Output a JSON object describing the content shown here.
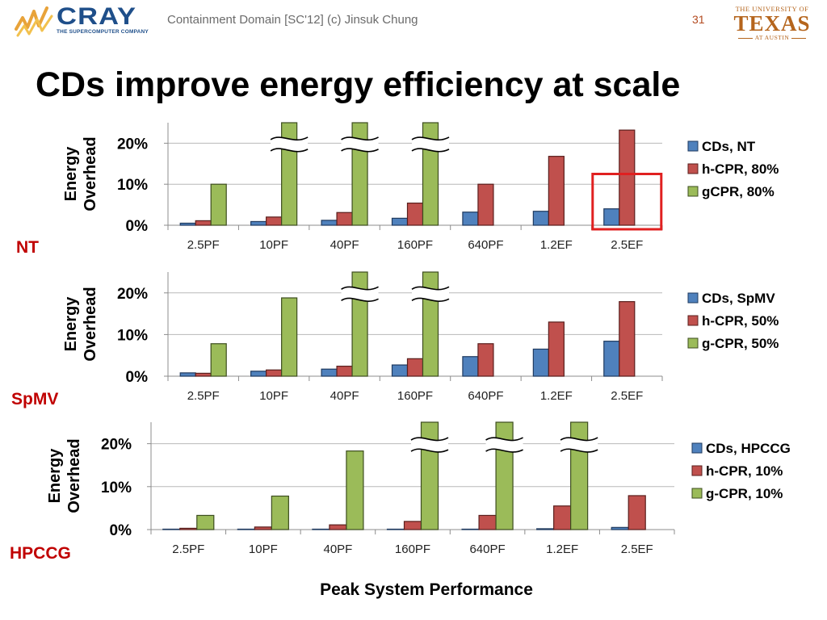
{
  "header": {
    "cray_logo_text": "CRAY",
    "cray_tagline": "THE SUPERCOMPUTER COMPANY",
    "caption": "Containment Domain [SC'12] (c) Jinsuk Chung",
    "slide_number": "31",
    "ut_line1": "THE UNIVERSITY OF",
    "ut_line2": "TEXAS",
    "ut_line3": "AT AUSTIN"
  },
  "title": "CDs improve energy efficiency at scale",
  "colors": {
    "series": [
      "#4f81bd",
      "#c0504d",
      "#9bbb59"
    ],
    "series_stroke": [
      "#1f3a5f",
      "#5a1f1d",
      "#3d4d1f"
    ],
    "panel_tag": "#c00000",
    "highlight_box": "#e02020"
  },
  "chart_data": [
    {
      "type": "bar",
      "panel_label": "NT",
      "ylabel_lines": [
        "Energy",
        "Overhead"
      ],
      "categories": [
        "2.5PF",
        "10PF",
        "40PF",
        "160PF",
        "640PF",
        "1.2EF",
        "2.5EF"
      ],
      "ylim": [
        0,
        0.25
      ],
      "yticks": [
        0,
        0.1,
        0.2
      ],
      "ytick_labels": [
        "0%",
        "10%",
        "20%"
      ],
      "grid": true,
      "legend_position": "right",
      "series": [
        {
          "name": "CDs, NT",
          "values": [
            0.005,
            0.009,
            0.012,
            0.017,
            0.032,
            0.034,
            0.04
          ]
        },
        {
          "name": "h-CPR, 80%",
          "values": [
            0.011,
            0.02,
            0.031,
            0.054,
            0.1,
            0.168,
            0.232
          ]
        },
        {
          "name": "gCPR, 80%",
          "values": [
            0.1,
            0.25,
            0.25,
            0.25,
            null,
            null,
            null
          ]
        }
      ],
      "broken_bars": [
        {
          "series": 2,
          "category": 1
        },
        {
          "series": 2,
          "category": 2
        },
        {
          "series": 2,
          "category": 3
        }
      ],
      "highlight_category": 6
    },
    {
      "type": "bar",
      "panel_label": "SpMV",
      "ylabel_lines": [
        "Energy",
        "Overhead"
      ],
      "categories": [
        "2.5PF",
        "10PF",
        "40PF",
        "160PF",
        "640PF",
        "1.2EF",
        "2.5EF"
      ],
      "ylim": [
        0,
        0.25
      ],
      "yticks": [
        0,
        0.1,
        0.2
      ],
      "ytick_labels": [
        "0%",
        "10%",
        "20%"
      ],
      "grid": true,
      "legend_position": "right",
      "series": [
        {
          "name": "CDs, SpMV",
          "values": [
            0.008,
            0.012,
            0.017,
            0.027,
            0.047,
            0.065,
            0.084
          ]
        },
        {
          "name": "h-CPR, 50%",
          "values": [
            0.007,
            0.015,
            0.024,
            0.042,
            0.078,
            0.13,
            0.179
          ]
        },
        {
          "name": "g-CPR, 50%",
          "values": [
            0.078,
            0.188,
            0.25,
            0.25,
            null,
            null,
            null
          ]
        }
      ],
      "broken_bars": [
        {
          "series": 2,
          "category": 2
        },
        {
          "series": 2,
          "category": 3
        }
      ]
    },
    {
      "type": "bar",
      "panel_label": "HPCCG",
      "ylabel_lines": [
        "Energy",
        "Overhead"
      ],
      "categories": [
        "2.5PF",
        "10PF",
        "40PF",
        "160PF",
        "640PF",
        "1.2EF",
        "2.5EF"
      ],
      "ylim": [
        0,
        0.25
      ],
      "yticks": [
        0,
        0.1,
        0.2
      ],
      "ytick_labels": [
        "0%",
        "10%",
        "20%"
      ],
      "grid": true,
      "legend_position": "right",
      "series": [
        {
          "name": "CDs, HPCCG",
          "values": [
            0.001,
            0.001,
            0.001,
            0.001,
            0.001,
            0.002,
            0.005
          ]
        },
        {
          "name": "h-CPR, 10%",
          "values": [
            0.003,
            0.006,
            0.011,
            0.019,
            0.033,
            0.055,
            0.079
          ]
        },
        {
          "name": "g-CPR, 10%",
          "values": [
            0.033,
            0.078,
            0.183,
            0.25,
            0.25,
            0.25,
            null
          ]
        }
      ],
      "broken_bars": [
        {
          "series": 2,
          "category": 3
        },
        {
          "series": 2,
          "category": 4
        },
        {
          "series": 2,
          "category": 5
        }
      ]
    }
  ],
  "xlabel": "Peak System Performance"
}
